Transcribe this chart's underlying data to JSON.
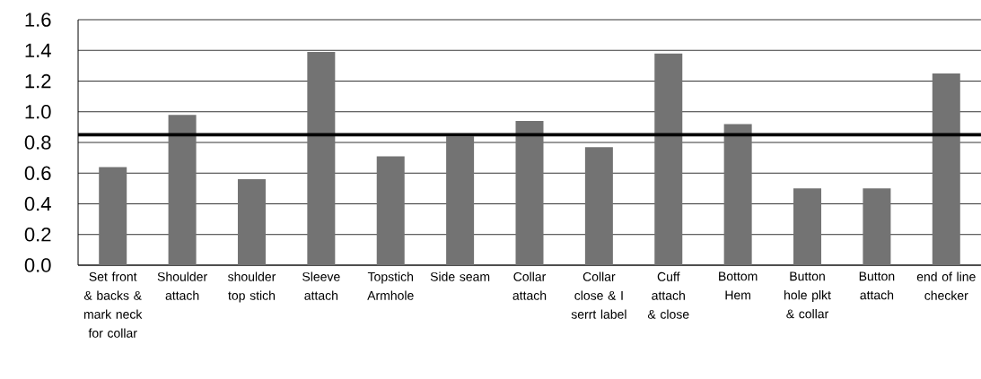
{
  "chart_data": {
    "type": "bar",
    "categories": [
      "Set front & backs & mark neck for collar",
      "Shoulder attach",
      "shoulder top stich",
      "Sleeve attach",
      "Topstich Armhole",
      "Side seam",
      "Collar attach",
      "Collar close & I serrt label",
      "Cuff attach & close",
      "Bottom Hem",
      "Button hole plkt & collar",
      "Button attach",
      "end of line checker"
    ],
    "values": [
      0.64,
      0.98,
      0.56,
      1.39,
      0.71,
      0.84,
      0.94,
      0.77,
      1.38,
      0.92,
      0.5,
      0.5,
      1.25
    ],
    "color": "#737373",
    "ylim": [
      0,
      1.6
    ],
    "yticks": [
      {
        "value": 0,
        "label": "0.0"
      },
      {
        "value": 0.2,
        "label": "0.2"
      },
      {
        "value": 0.4,
        "label": "0.4"
      },
      {
        "value": 0.6,
        "label": "0.6"
      },
      {
        "value": 0.8,
        "label": "0.8"
      },
      {
        "value": 1.0,
        "label": "1.0"
      },
      {
        "value": 1.2,
        "label": "1.2"
      },
      {
        "value": 1.4,
        "label": "1.4"
      },
      {
        "value": 1.6,
        "label": "1.6"
      }
    ],
    "ref_lines": [
      {
        "axis": "y",
        "value": 0.85,
        "color": "#000000"
      }
    ],
    "grid": "y"
  }
}
